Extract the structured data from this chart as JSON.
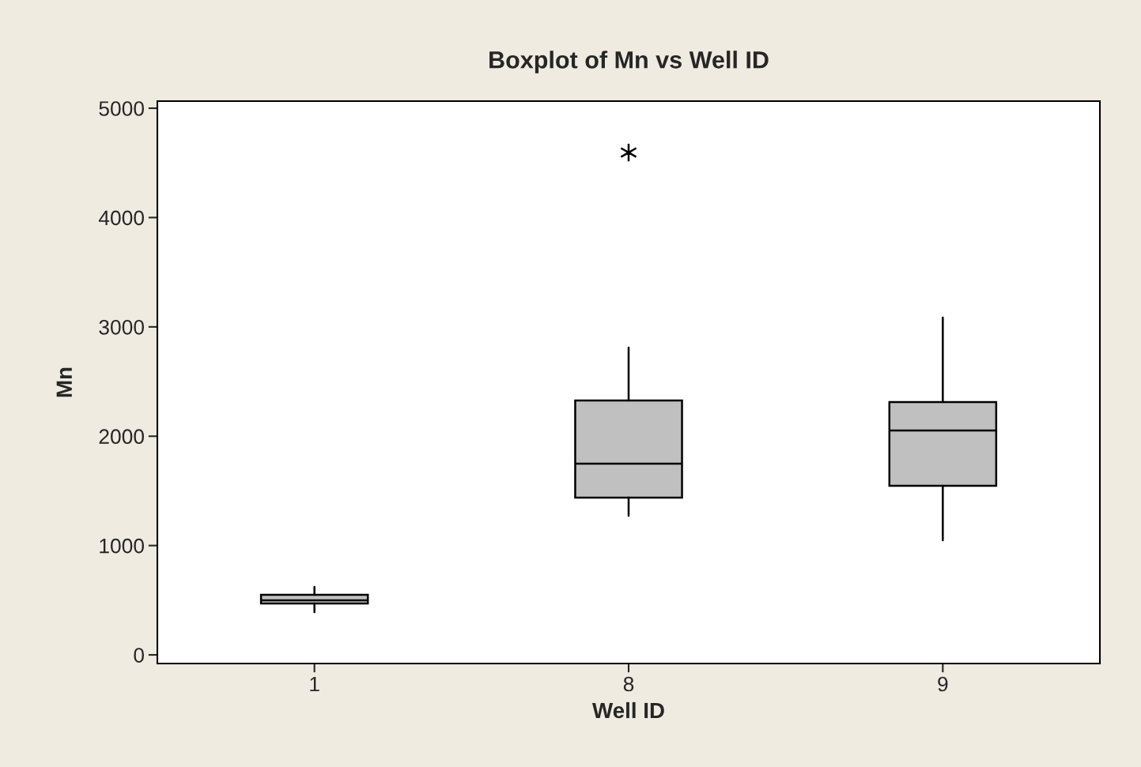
{
  "chart_data": {
    "type": "box",
    "title": "Boxplot of Mn vs Well ID",
    "xlabel": "Well ID",
    "ylabel": "Mn",
    "categories": [
      "1",
      "8",
      "9"
    ],
    "boxes": [
      {
        "low": 390,
        "q1": 470,
        "median": 499,
        "q3": 549,
        "high": 621
      },
      {
        "low": 1272,
        "q1": 1438,
        "median": 1749,
        "q3": 2327,
        "high": 2811,
        "outliers": [
          4595
        ]
      },
      {
        "low": 1048,
        "q1": 1546,
        "median": 2052,
        "q3": 2312,
        "high": 3085
      }
    ],
    "color": "#c0c0c0",
    "ylim": [
      -79,
      5065
    ],
    "yticks": [
      0,
      1000,
      2000,
      3000,
      4000,
      5000
    ],
    "grid": false
  }
}
